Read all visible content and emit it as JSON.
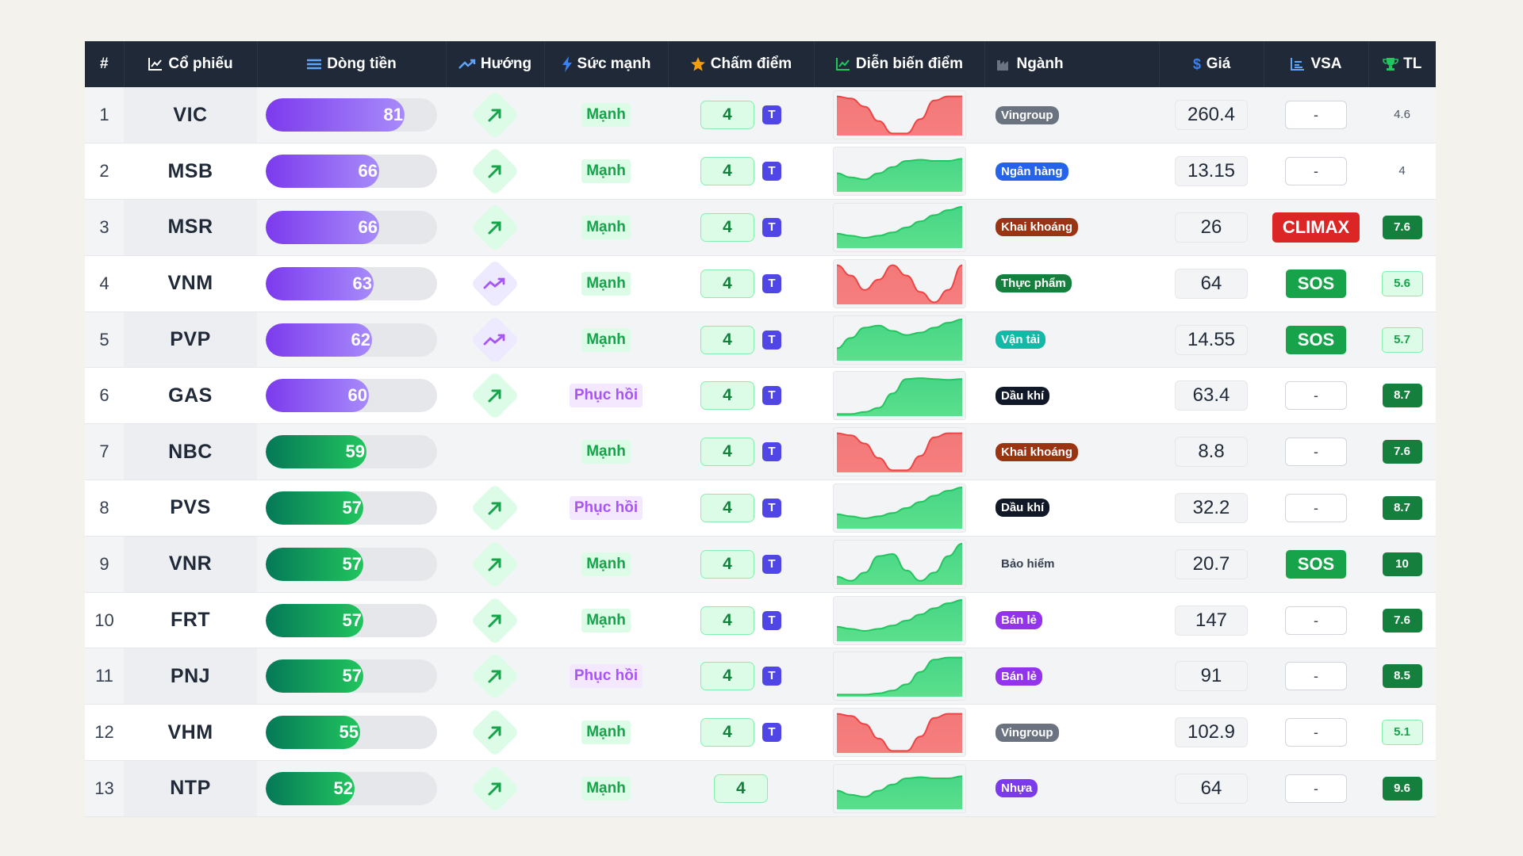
{
  "header": {
    "rank": "#",
    "symbol": "Cổ phiếu",
    "flow": "Dòng tiền",
    "direction": "Hướng",
    "strength": "Sức mạnh",
    "score": "Chấm điểm",
    "trend": "Diễn biến điểm",
    "sector": "Ngành",
    "price": "Giá",
    "vsa": "VSA",
    "tl": "TL"
  },
  "icons": {
    "symbol": "line-chart-icon",
    "flow": "list-icon",
    "direction": "trend-up-icon",
    "strength": "lightning-icon",
    "score": "star-icon",
    "trend": "area-chart-icon",
    "sector": "factory-icon",
    "price": "dollar-icon",
    "vsa": "bar-chart-icon",
    "tl": "trophy-icon"
  },
  "sector_colors": {
    "Vingroup": "#6b7280",
    "Ngân hàng": "#2563eb",
    "Khai khoáng": "#9a3412",
    "Thực phẩm": "#15803d",
    "Vận tải": "#14b8a6",
    "Dầu khí": "#111827",
    "Bảo hiểm": "transparent",
    "Bán lẻ": "#9333ea",
    "Nhựa": "#7c3aed"
  },
  "rows": [
    {
      "rank": "1",
      "symbol": "VIC",
      "flow": 81,
      "flow_color": "purple",
      "direction": "up",
      "strength": "Mạnh",
      "strength_kind": "manh",
      "score": "4",
      "t": "T",
      "trend": "down-v",
      "sector": "Vingroup",
      "price": "260.4",
      "vsa": "-",
      "tl": "4.6",
      "tl_style": "plain"
    },
    {
      "rank": "2",
      "symbol": "MSB",
      "flow": 66,
      "flow_color": "purple",
      "direction": "up",
      "strength": "Mạnh",
      "strength_kind": "manh",
      "score": "4",
      "t": "T",
      "trend": "flat-up",
      "sector": "Ngân hàng",
      "price": "13.15",
      "vsa": "-",
      "tl": "4",
      "tl_style": "plain"
    },
    {
      "rank": "3",
      "symbol": "MSR",
      "flow": 66,
      "flow_color": "purple",
      "direction": "up",
      "strength": "Mạnh",
      "strength_kind": "manh",
      "score": "4",
      "t": "T",
      "trend": "rise",
      "sector": "Khai khoáng",
      "price": "26",
      "vsa": "CLIMAX",
      "tl": "7.6",
      "tl_style": "dark"
    },
    {
      "rank": "4",
      "symbol": "VNM",
      "flow": 63,
      "flow_color": "purple",
      "direction": "wave",
      "strength": "Mạnh",
      "strength_kind": "manh",
      "score": "4",
      "t": "T",
      "trend": "double-v",
      "sector": "Thực phẩm",
      "price": "64",
      "vsa": "SOS",
      "tl": "5.6",
      "tl_style": "light"
    },
    {
      "rank": "5",
      "symbol": "PVP",
      "flow": 62,
      "flow_color": "purple",
      "direction": "wave",
      "strength": "Mạnh",
      "strength_kind": "manh",
      "score": "4",
      "t": "T",
      "trend": "wave-up",
      "sector": "Vận tải",
      "price": "14.55",
      "vsa": "SOS",
      "tl": "5.7",
      "tl_style": "light"
    },
    {
      "rank": "6",
      "symbol": "GAS",
      "flow": 60,
      "flow_color": "purple",
      "direction": "up",
      "strength": "Phục hồi",
      "strength_kind": "phuc",
      "score": "4",
      "t": "T",
      "trend": "step-up",
      "sector": "Dầu khí",
      "price": "63.4",
      "vsa": "-",
      "tl": "8.7",
      "tl_style": "dark"
    },
    {
      "rank": "7",
      "symbol": "NBC",
      "flow": 59,
      "flow_color": "green",
      "direction": "none",
      "strength": "Mạnh",
      "strength_kind": "manh",
      "score": "4",
      "t": "T",
      "trend": "down-v",
      "sector": "Khai khoáng",
      "price": "8.8",
      "vsa": "-",
      "tl": "7.6",
      "tl_style": "dark"
    },
    {
      "rank": "8",
      "symbol": "PVS",
      "flow": 57,
      "flow_color": "green",
      "direction": "up",
      "strength": "Phục hồi",
      "strength_kind": "phuc",
      "score": "4",
      "t": "T",
      "trend": "rise",
      "sector": "Dầu khí",
      "price": "32.2",
      "vsa": "-",
      "tl": "8.7",
      "tl_style": "dark"
    },
    {
      "rank": "9",
      "symbol": "VNR",
      "flow": 57,
      "flow_color": "green",
      "direction": "up",
      "strength": "Mạnh",
      "strength_kind": "manh",
      "score": "4",
      "t": "T",
      "trend": "hump-up",
      "sector": "Bảo hiểm",
      "price": "20.7",
      "vsa": "SOS",
      "tl": "10",
      "tl_style": "dark"
    },
    {
      "rank": "10",
      "symbol": "FRT",
      "flow": 57,
      "flow_color": "green",
      "direction": "up",
      "strength": "Mạnh",
      "strength_kind": "manh",
      "score": "4",
      "t": "T",
      "trend": "rise",
      "sector": "Bán lẻ",
      "price": "147",
      "vsa": "-",
      "tl": "7.6",
      "tl_style": "dark"
    },
    {
      "rank": "11",
      "symbol": "PNJ",
      "flow": 57,
      "flow_color": "green",
      "direction": "up",
      "strength": "Phục hồi",
      "strength_kind": "phuc",
      "score": "4",
      "t": "T",
      "trend": "late-up",
      "sector": "Bán lẻ",
      "price": "91",
      "vsa": "-",
      "tl": "8.5",
      "tl_style": "dark"
    },
    {
      "rank": "12",
      "symbol": "VHM",
      "flow": 55,
      "flow_color": "green",
      "direction": "up",
      "strength": "Mạnh",
      "strength_kind": "manh",
      "score": "4",
      "t": "T",
      "trend": "down-v",
      "sector": "Vingroup",
      "price": "102.9",
      "vsa": "-",
      "tl": "5.1",
      "tl_style": "light"
    },
    {
      "rank": "13",
      "symbol": "NTP",
      "flow": 52,
      "flow_color": "green",
      "direction": "up",
      "strength": "Mạnh",
      "strength_kind": "manh",
      "score": "4",
      "t": "",
      "trend": "flat-up",
      "sector": "Nhựa",
      "price": "64",
      "vsa": "-",
      "tl": "9.6",
      "tl_style": "dark"
    }
  ]
}
